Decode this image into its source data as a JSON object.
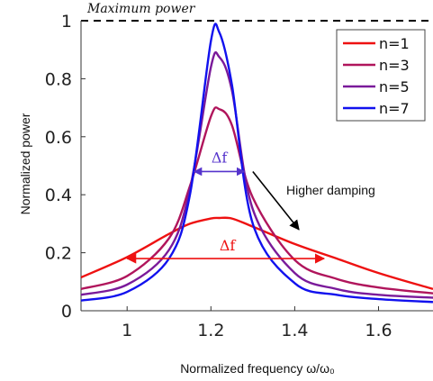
{
  "chart_data": {
    "type": "line",
    "title": "",
    "xlabel": "Normalized frequency ω/ω₀",
    "ylabel": "Normalized power",
    "xlim": [
      0.89,
      1.73
    ],
    "ylim": [
      0,
      1
    ],
    "xticks": [
      "1",
      "1.2",
      "1.4",
      "1.6"
    ],
    "yticks": [
      "0",
      "0.2",
      "0.4",
      "0.6",
      "0.8",
      "1"
    ],
    "grid": false,
    "legend_position": "top-right",
    "x": [
      0.89,
      1.0,
      1.1,
      1.15,
      1.2,
      1.22,
      1.25,
      1.3,
      1.4,
      1.5,
      1.6,
      1.73
    ],
    "series": [
      {
        "name": "n=1",
        "color": "#ee1111",
        "values": [
          0.115,
          0.185,
          0.265,
          0.3,
          0.318,
          0.32,
          0.318,
          0.29,
          0.23,
          0.18,
          0.13,
          0.075
        ]
      },
      {
        "name": "n=3",
        "color": "#b0155c",
        "values": [
          0.075,
          0.12,
          0.25,
          0.43,
          0.67,
          0.695,
          0.64,
          0.39,
          0.175,
          0.11,
          0.08,
          0.06
        ]
      },
      {
        "name": "n=5",
        "color": "#7a1a9a",
        "values": [
          0.055,
          0.09,
          0.21,
          0.42,
          0.84,
          0.875,
          0.76,
          0.35,
          0.13,
          0.075,
          0.055,
          0.045
        ]
      },
      {
        "name": "n=7",
        "color": "#1111ee",
        "values": [
          0.035,
          0.065,
          0.18,
          0.4,
          0.93,
          0.96,
          0.78,
          0.3,
          0.095,
          0.055,
          0.04,
          0.03
        ]
      }
    ],
    "reference_line": {
      "label": "Maximum power",
      "y": 1
    },
    "annotations": {
      "delta_f_label": "Δf",
      "damping_note": "Higher damping",
      "narrow_band": {
        "x_from": 1.16,
        "x_to": 1.28,
        "y": 0.48,
        "color": "#5533cc"
      },
      "wide_band": {
        "x_from": 1.0,
        "x_to": 1.47,
        "y": 0.18,
        "color": "#ee1111"
      },
      "damping_arrow": {
        "x_from": 1.3,
        "y_from": 0.48,
        "x_to": 1.41,
        "y_to": 0.28
      }
    }
  }
}
